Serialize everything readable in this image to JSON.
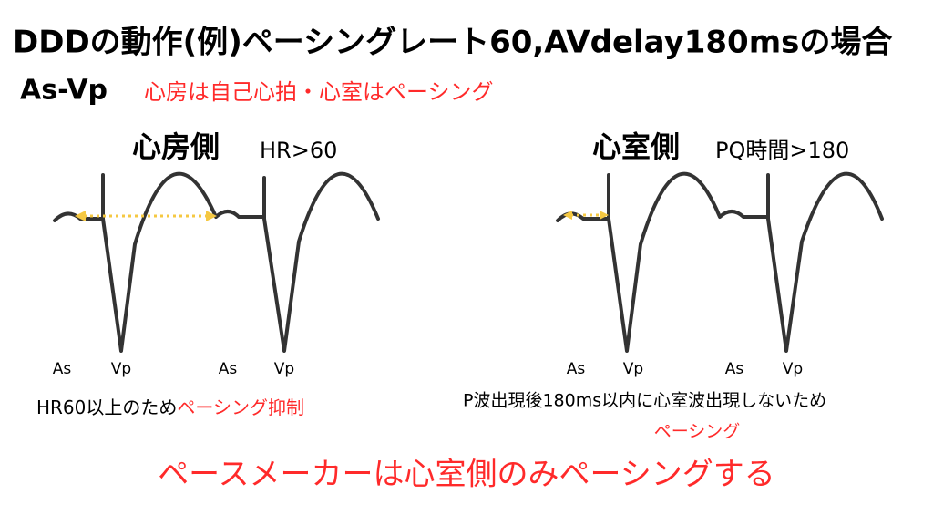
{
  "header": {
    "title": "DDDの動作(例)ペーシングレート60,AVdelay180msの場合",
    "mode": "As-Vp",
    "mode_note": "心房は自己心拍・心室はペーシング"
  },
  "panels": [
    {
      "heading": "心房側",
      "condition": "HR>60",
      "labels": [
        "As",
        "Vp",
        "As",
        "Vp"
      ],
      "caption": "HR60以上のため",
      "result": "ペーシング抑制"
    },
    {
      "heading": "心室側",
      "condition": "PQ時間>180",
      "labels": [
        "As",
        "Vp",
        "As",
        "Vp"
      ],
      "caption": "P波出現後180ms以内に心室波出現しないため",
      "result": "ペーシング"
    }
  ],
  "conclusion": "ペースメーカーは心室側のみペーシングする"
}
